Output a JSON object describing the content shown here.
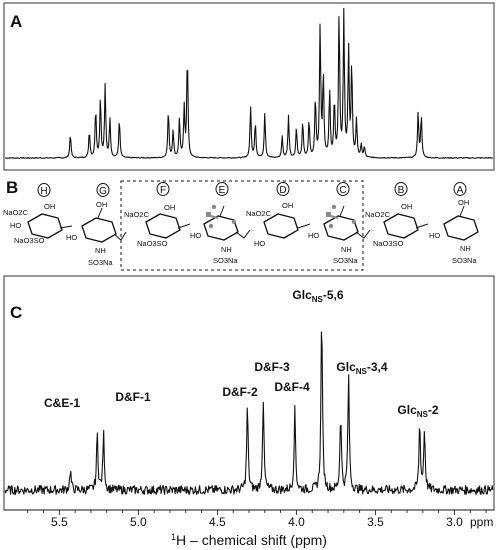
{
  "panels": {
    "A": "A",
    "B": "B",
    "C": "C"
  },
  "chart_data": [
    {
      "type": "line",
      "panel": "A",
      "title": "",
      "xlim": [
        5.85,
        2.75
      ],
      "x_reversed": true,
      "xlabel": "",
      "ylabel": "",
      "peaks": [
        {
          "ppm": 5.43,
          "height": 0.16
        },
        {
          "ppm": 5.31,
          "height": 0.18
        },
        {
          "ppm": 5.27,
          "height": 0.33
        },
        {
          "ppm": 5.24,
          "height": 0.4
        },
        {
          "ppm": 5.21,
          "height": 0.48
        },
        {
          "ppm": 5.18,
          "height": 0.26
        },
        {
          "ppm": 5.12,
          "height": 0.26
        },
        {
          "ppm": 4.81,
          "height": 0.32
        },
        {
          "ppm": 4.78,
          "height": 0.18
        },
        {
          "ppm": 4.74,
          "height": 0.26
        },
        {
          "ppm": 4.71,
          "height": 0.33
        },
        {
          "ppm": 4.69,
          "height": 0.7
        },
        {
          "ppm": 4.29,
          "height": 0.34
        },
        {
          "ppm": 4.26,
          "height": 0.24
        },
        {
          "ppm": 4.2,
          "height": 0.3
        },
        {
          "ppm": 4.09,
          "height": 0.14
        },
        {
          "ppm": 4.05,
          "height": 0.28
        },
        {
          "ppm": 4.0,
          "height": 0.2
        },
        {
          "ppm": 3.96,
          "height": 0.24
        },
        {
          "ppm": 3.92,
          "height": 0.25
        },
        {
          "ppm": 3.88,
          "height": 0.4
        },
        {
          "ppm": 3.85,
          "height": 0.88
        },
        {
          "ppm": 3.83,
          "height": 0.55
        },
        {
          "ppm": 3.79,
          "height": 0.45
        },
        {
          "ppm": 3.76,
          "height": 0.38
        },
        {
          "ppm": 3.73,
          "height": 0.97
        },
        {
          "ppm": 3.7,
          "height": 0.95
        },
        {
          "ppm": 3.67,
          "height": 0.72
        },
        {
          "ppm": 3.65,
          "height": 0.62
        },
        {
          "ppm": 3.62,
          "height": 0.25
        },
        {
          "ppm": 3.59,
          "height": 0.08
        },
        {
          "ppm": 3.57,
          "height": 0.07
        },
        {
          "ppm": 3.23,
          "height": 0.3
        },
        {
          "ppm": 3.21,
          "height": 0.28
        }
      ]
    },
    {
      "type": "line",
      "panel": "C",
      "title": "",
      "xlim": [
        5.85,
        2.75
      ],
      "x_reversed": true,
      "xlabel": "1H – chemical shift (ppm)",
      "x_ticks": [
        5.5,
        5.0,
        4.5,
        4.0,
        3.5,
        3.0
      ],
      "x_tick_labels": [
        "5.5",
        "5.0",
        "4.5",
        "4.0",
        "3.5",
        "3.0"
      ],
      "x_unit_label": "ppm",
      "ylabel": "",
      "peaks": [
        {
          "ppm": 5.43,
          "height": 0.1
        },
        {
          "ppm": 5.26,
          "height": 0.28
        },
        {
          "ppm": 5.22,
          "height": 0.28
        },
        {
          "ppm": 4.31,
          "height": 0.42
        },
        {
          "ppm": 4.21,
          "height": 0.45
        },
        {
          "ppm": 4.01,
          "height": 0.4
        },
        {
          "ppm": 3.84,
          "height": 0.88
        },
        {
          "ppm": 3.72,
          "height": 0.38
        },
        {
          "ppm": 3.67,
          "height": 0.56
        },
        {
          "ppm": 3.22,
          "height": 0.33
        },
        {
          "ppm": 3.19,
          "height": 0.3
        }
      ],
      "annotations": [
        {
          "ppm": 5.43,
          "text": "C&E-1"
        },
        {
          "ppm": 5.22,
          "text": "D&F-1"
        },
        {
          "ppm": 4.31,
          "text": "D&F-2"
        },
        {
          "ppm": 4.21,
          "text": "D&F-3"
        },
        {
          "ppm": 4.01,
          "text": "D&F-4"
        },
        {
          "ppm": 3.84,
          "base": "Glc",
          "sub": "NS",
          "rest": "-5,6"
        },
        {
          "ppm": 3.67,
          "base": "Glc",
          "sub": "NS",
          "rest": "-3,4"
        },
        {
          "ppm": 3.21,
          "base": "Glc",
          "sub": "NS",
          "rest": "-2"
        }
      ]
    }
  ],
  "structure": {
    "residues": [
      "H",
      "G",
      "F",
      "E",
      "D",
      "C",
      "B",
      "A"
    ],
    "labels": {
      "H": {
        "l1": "NaO2C",
        "l2": "HO",
        "l3": "NaO3SO",
        "oh": "OH"
      },
      "G": {
        "ho": "HO",
        "nh": "NH",
        "so3": "SO3Na",
        "oh": "OH"
      },
      "F": {
        "l1": "NaO2C",
        "l3": "NaO3SO",
        "oh": "OH"
      },
      "E": {
        "ho": "HO",
        "nh": "NH",
        "so3": "SO3Na"
      },
      "D": {
        "l1": "NaO2C",
        "l2": "HO",
        "oh": "OH"
      },
      "C": {
        "ho": "HO",
        "nh": "NH",
        "so3": "SO3Na"
      },
      "B": {
        "l1": "NaO2C",
        "l3": "NaO3SO",
        "oh": "OH"
      },
      "A": {
        "ho": "HO",
        "nh": "NH",
        "so3": "SO3Na",
        "oh": "OH"
      }
    }
  }
}
